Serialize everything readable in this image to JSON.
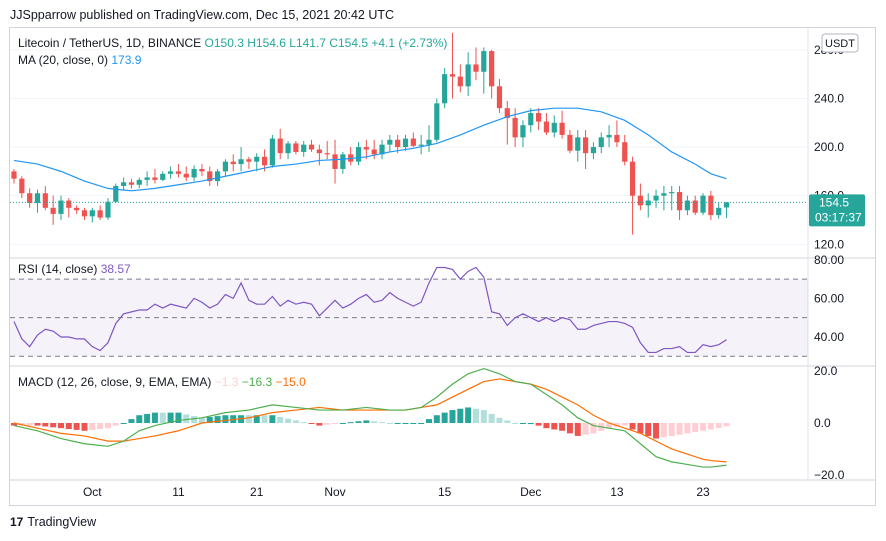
{
  "header_text": "JJSpparrow published on TradingView.com, Dec 15, 2021 20:42 UTC",
  "footer_brand": "TradingView",
  "colors": {
    "up": "#26a69a",
    "down": "#ef5350",
    "ma": "#2196f3",
    "rsi": "#7e57c2",
    "macd": "#4caf50",
    "signal": "#ff6d00",
    "hist_up_strong": "#26a69a",
    "hist_up_weak": "#b2dfdb",
    "hist_down_strong": "#ef5350",
    "hist_down_weak": "#ffcdd2"
  },
  "chart_data": [
    {
      "type": "candlestick",
      "title": "Litecoin / TetherUS, 1D, BINANCE",
      "ohlc_label": {
        "o": "O150.3",
        "h": "H154.6",
        "l": "L141.7",
        "c": "C154.5",
        "chg": "+4.1 (+2.73%)"
      },
      "currency_badge": "USDT",
      "ma_label": "MA (20, close, 0)",
      "ma_value": "173.9",
      "last_price": "154.5",
      "countdown": "03:17:37",
      "y_ticks": [
        "280.0",
        "240.0",
        "200.0",
        "160.0",
        "120.0"
      ],
      "ylim": [
        112,
        298
      ],
      "x_ticks": [
        "Oct",
        "11",
        "21",
        "Nov",
        "15",
        "Dec",
        "13",
        "23"
      ],
      "start_date": "2021-09-20",
      "candles": [
        [
          180,
          182,
          170,
          174
        ],
        [
          174,
          176,
          158,
          162
        ],
        [
          162,
          166,
          150,
          154
        ],
        [
          154,
          165,
          146,
          162
        ],
        [
          162,
          168,
          148,
          150
        ],
        [
          150,
          160,
          136,
          145
        ],
        [
          145,
          160,
          140,
          156
        ],
        [
          156,
          158,
          142,
          150
        ],
        [
          150,
          152,
          145,
          148
        ],
        [
          148,
          150,
          140,
          143
        ],
        [
          143,
          150,
          138,
          148
        ],
        [
          148,
          152,
          140,
          142
        ],
        [
          142,
          158,
          140,
          155
        ],
        [
          155,
          170,
          154,
          168
        ],
        [
          168,
          175,
          165,
          171
        ],
        [
          171,
          174,
          166,
          169
        ],
        [
          169,
          175,
          166,
          173
        ],
        [
          173,
          180,
          168,
          175
        ],
        [
          175,
          182,
          170,
          173
        ],
        [
          173,
          180,
          172,
          178
        ],
        [
          178,
          184,
          174,
          180
        ],
        [
          180,
          186,
          175,
          178
        ],
        [
          178,
          184,
          172,
          175
        ],
        [
          175,
          185,
          172,
          182
        ],
        [
          182,
          186,
          176,
          180
        ],
        [
          180,
          184,
          168,
          172
        ],
        [
          172,
          182,
          168,
          180
        ],
        [
          180,
          190,
          176,
          188
        ],
        [
          188,
          194,
          180,
          186
        ],
        [
          186,
          200,
          180,
          190
        ],
        [
          190,
          192,
          182,
          188
        ],
        [
          188,
          195,
          180,
          192
        ],
        [
          192,
          198,
          180,
          185
        ],
        [
          185,
          210,
          183,
          207
        ],
        [
          207,
          215,
          190,
          195
        ],
        [
          195,
          205,
          190,
          203
        ],
        [
          203,
          205,
          194,
          196
        ],
        [
          196,
          205,
          192,
          202
        ],
        [
          202,
          206,
          196,
          198
        ],
        [
          198,
          202,
          185,
          195
        ],
        [
          195,
          205,
          190,
          194
        ],
        [
          194,
          206,
          170,
          182
        ],
        [
          182,
          196,
          178,
          194
        ],
        [
          194,
          200,
          185,
          188
        ],
        [
          188,
          204,
          185,
          200
        ],
        [
          200,
          206,
          190,
          198
        ],
        [
          198,
          206,
          190,
          194
        ],
        [
          194,
          206,
          190,
          202
        ],
        [
          202,
          210,
          196,
          206
        ],
        [
          206,
          210,
          195,
          200
        ],
        [
          200,
          210,
          197,
          207
        ],
        [
          207,
          212,
          200,
          201
        ],
        [
          201,
          210,
          194,
          202
        ],
        [
          202,
          218,
          196,
          206
        ],
        [
          206,
          240,
          204,
          236
        ],
        [
          236,
          265,
          232,
          260
        ],
        [
          260,
          294,
          240,
          258
        ],
        [
          258,
          268,
          245,
          250
        ],
        [
          250,
          278,
          242,
          268
        ],
        [
          268,
          282,
          255,
          262
        ],
        [
          262,
          282,
          244,
          279
        ],
        [
          279,
          280,
          240,
          250
        ],
        [
          250,
          256,
          228,
          232
        ],
        [
          232,
          238,
          202,
          224
        ],
        [
          224,
          232,
          200,
          208
        ],
        [
          208,
          222,
          200,
          218
        ],
        [
          218,
          232,
          212,
          228
        ],
        [
          228,
          232,
          214,
          221
        ],
        [
          221,
          228,
          210,
          212
        ],
        [
          212,
          226,
          208,
          220
        ],
        [
          220,
          230,
          207,
          210
        ],
        [
          210,
          214,
          195,
          197
        ],
        [
          197,
          214,
          188,
          208
        ],
        [
          208,
          214,
          182,
          195
        ],
        [
          195,
          204,
          190,
          200
        ],
        [
          200,
          212,
          195,
          208
        ],
        [
          208,
          218,
          200,
          210
        ],
        [
          210,
          222,
          200,
          204
        ],
        [
          204,
          210,
          185,
          188
        ],
        [
          188,
          192,
          128,
          160
        ],
        [
          160,
          170,
          148,
          152
        ],
        [
          152,
          162,
          142,
          156
        ],
        [
          156,
          165,
          150,
          160
        ],
        [
          160,
          168,
          148,
          162
        ],
        [
          162,
          168,
          148,
          163
        ],
        [
          163,
          168,
          140,
          148
        ],
        [
          148,
          160,
          144,
          156
        ],
        [
          156,
          160,
          144,
          146
        ],
        [
          146,
          162,
          144,
          160
        ],
        [
          160,
          164,
          140,
          144
        ],
        [
          144,
          154,
          141,
          150
        ],
        [
          150.3,
          154.6,
          141.7,
          154.5
        ]
      ],
      "ma20": [
        [
          0,
          189
        ],
        [
          3,
          186
        ],
        [
          6,
          180
        ],
        [
          9,
          172
        ],
        [
          12,
          166
        ],
        [
          15,
          164
        ],
        [
          18,
          166
        ],
        [
          21,
          169
        ],
        [
          24,
          172
        ],
        [
          27,
          176
        ],
        [
          30,
          180
        ],
        [
          33,
          184
        ],
        [
          36,
          186
        ],
        [
          39,
          189
        ],
        [
          42,
          190
        ],
        [
          45,
          192
        ],
        [
          48,
          196
        ],
        [
          51,
          199
        ],
        [
          54,
          203
        ],
        [
          57,
          210
        ],
        [
          60,
          218
        ],
        [
          63,
          225
        ],
        [
          66,
          230
        ],
        [
          69,
          232
        ],
        [
          72,
          232
        ],
        [
          75,
          229
        ],
        [
          78,
          222
        ],
        [
          81,
          210
        ],
        [
          84,
          196
        ],
        [
          87,
          186
        ],
        [
          89,
          178
        ],
        [
          91,
          174
        ]
      ]
    },
    {
      "type": "line",
      "title": "RSI (14, close)",
      "last_value": "38.57",
      "y_ticks": [
        "80.00",
        "60.00",
        "40.00"
      ],
      "ylim": [
        26,
        83
      ],
      "band": [
        30,
        70
      ],
      "midline": 50,
      "values": [
        [
          0,
          48
        ],
        [
          1,
          39
        ],
        [
          2,
          35
        ],
        [
          3,
          41
        ],
        [
          4,
          44
        ],
        [
          5,
          43
        ],
        [
          6,
          40
        ],
        [
          7,
          40
        ],
        [
          8,
          39
        ],
        [
          9,
          39
        ],
        [
          10,
          35
        ],
        [
          11,
          33
        ],
        [
          12,
          37
        ],
        [
          13,
          47
        ],
        [
          14,
          52
        ],
        [
          15,
          53
        ],
        [
          16,
          54
        ],
        [
          17,
          54
        ],
        [
          18,
          57
        ],
        [
          19,
          55
        ],
        [
          20,
          57
        ],
        [
          21,
          56
        ],
        [
          22,
          55
        ],
        [
          23,
          60
        ],
        [
          24,
          58
        ],
        [
          25,
          55
        ],
        [
          26,
          57
        ],
        [
          27,
          62
        ],
        [
          28,
          60
        ],
        [
          29,
          68
        ],
        [
          30,
          59
        ],
        [
          31,
          57
        ],
        [
          32,
          57
        ],
        [
          33,
          61
        ],
        [
          34,
          56
        ],
        [
          35,
          59
        ],
        [
          36,
          57
        ],
        [
          37,
          58
        ],
        [
          38,
          57
        ],
        [
          39,
          51
        ],
        [
          40,
          55
        ],
        [
          41,
          59
        ],
        [
          42,
          55
        ],
        [
          43,
          57
        ],
        [
          44,
          60
        ],
        [
          45,
          62
        ],
        [
          46,
          58
        ],
        [
          47,
          59
        ],
        [
          48,
          63
        ],
        [
          49,
          60
        ],
        [
          50,
          58
        ],
        [
          51,
          56
        ],
        [
          52,
          58
        ],
        [
          53,
          68
        ],
        [
          54,
          76
        ],
        [
          55,
          76
        ],
        [
          56,
          75
        ],
        [
          57,
          70
        ],
        [
          58,
          74
        ],
        [
          59,
          76
        ],
        [
          60,
          71
        ],
        [
          61,
          53
        ],
        [
          62,
          52
        ],
        [
          63,
          46
        ],
        [
          64,
          50
        ],
        [
          65,
          52
        ],
        [
          66,
          50
        ],
        [
          67,
          48
        ],
        [
          68,
          50
        ],
        [
          69,
          48
        ],
        [
          70,
          50
        ],
        [
          71,
          49
        ],
        [
          72,
          44
        ],
        [
          73,
          44
        ],
        [
          74,
          46
        ],
        [
          75,
          47
        ],
        [
          76,
          48
        ],
        [
          77,
          48
        ],
        [
          78,
          47
        ],
        [
          79,
          45
        ],
        [
          80,
          37
        ],
        [
          81,
          32
        ],
        [
          82,
          32
        ],
        [
          83,
          34
        ],
        [
          84,
          34
        ],
        [
          85,
          35
        ],
        [
          86,
          32
        ],
        [
          87,
          32
        ],
        [
          88,
          36
        ],
        [
          89,
          35
        ],
        [
          90,
          36
        ],
        [
          91,
          38.6
        ]
      ]
    },
    {
      "type": "line+bar",
      "title": "MACD (12, 26, close, 9, EMA, EMA)",
      "values_label": {
        "hist": "−1.3",
        "macd": "−16.3",
        "signal": "−15.0"
      },
      "y_ticks": [
        "20.0",
        "0.0",
        "−20.0"
      ],
      "ylim": [
        -22,
        22
      ],
      "macd": [
        [
          0,
          -1
        ],
        [
          3,
          -3
        ],
        [
          6,
          -6
        ],
        [
          9,
          -8
        ],
        [
          12,
          -9
        ],
        [
          14,
          -7
        ],
        [
          16,
          -3
        ],
        [
          18,
          -1
        ],
        [
          21,
          1
        ],
        [
          24,
          2
        ],
        [
          27,
          4
        ],
        [
          30,
          5
        ],
        [
          33,
          7
        ],
        [
          36,
          6
        ],
        [
          39,
          5
        ],
        [
          42,
          5
        ],
        [
          45,
          6
        ],
        [
          48,
          5
        ],
        [
          50,
          5
        ],
        [
          52,
          6
        ],
        [
          54,
          10
        ],
        [
          56,
          15
        ],
        [
          58,
          19
        ],
        [
          60,
          21
        ],
        [
          62,
          19
        ],
        [
          64,
          16
        ],
        [
          66,
          15
        ],
        [
          68,
          11
        ],
        [
          70,
          7
        ],
        [
          72,
          2
        ],
        [
          74,
          -1
        ],
        [
          76,
          -2
        ],
        [
          78,
          -3
        ],
        [
          80,
          -8
        ],
        [
          82,
          -13
        ],
        [
          84,
          -15
        ],
        [
          86,
          -16
        ],
        [
          88,
          -17
        ],
        [
          89,
          -17
        ],
        [
          91,
          -16.3
        ]
      ],
      "signal": [
        [
          0,
          0
        ],
        [
          3,
          -2
        ],
        [
          6,
          -4
        ],
        [
          9,
          -5
        ],
        [
          12,
          -7
        ],
        [
          14,
          -7
        ],
        [
          16,
          -6
        ],
        [
          18,
          -5
        ],
        [
          21,
          -3
        ],
        [
          24,
          0
        ],
        [
          27,
          1
        ],
        [
          30,
          2
        ],
        [
          33,
          4
        ],
        [
          36,
          5
        ],
        [
          39,
          6
        ],
        [
          42,
          5
        ],
        [
          45,
          5
        ],
        [
          48,
          5
        ],
        [
          50,
          5
        ],
        [
          52,
          6
        ],
        [
          54,
          7
        ],
        [
          56,
          10
        ],
        [
          58,
          13
        ],
        [
          60,
          16
        ],
        [
          62,
          17
        ],
        [
          64,
          16
        ],
        [
          66,
          15
        ],
        [
          68,
          13
        ],
        [
          70,
          10
        ],
        [
          72,
          7
        ],
        [
          74,
          3
        ],
        [
          76,
          0
        ],
        [
          78,
          -2
        ],
        [
          80,
          -4
        ],
        [
          82,
          -7
        ],
        [
          84,
          -10
        ],
        [
          86,
          -12
        ],
        [
          88,
          -14
        ],
        [
          89,
          -14.5
        ],
        [
          91,
          -15
        ]
      ]
    }
  ]
}
